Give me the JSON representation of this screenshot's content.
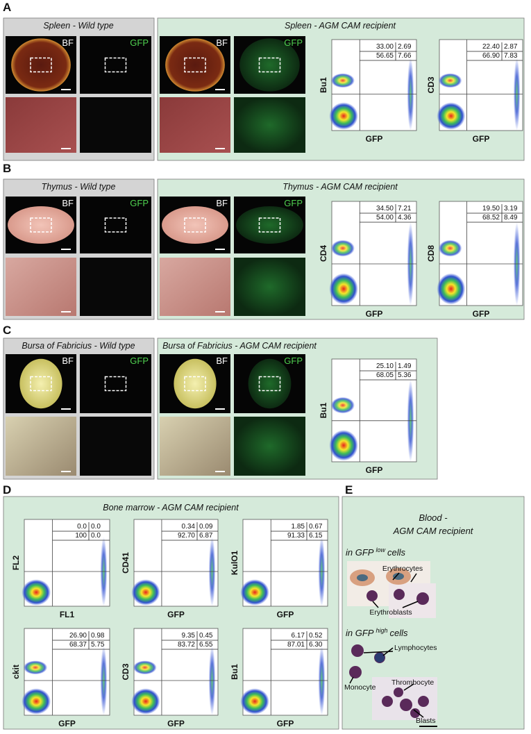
{
  "panels": [
    {
      "label": "A",
      "groups": [
        {
          "title": "Spleen - Wild type",
          "image_labels": [
            "BF",
            "GFP"
          ]
        },
        {
          "title": "Spleen - AGM CAM recipient",
          "image_labels": [
            "BF",
            "GFP"
          ],
          "plots": [
            {
              "y_label": "Bu1",
              "x_label": "GFP",
              "quadrants": [
                [
                  "33.00",
                  "2.69"
                ],
                [
                  "56.65",
                  "7.66"
                ]
              ]
            },
            {
              "y_label": "CD3",
              "x_label": "GFP",
              "quadrants": [
                [
                  "22.40",
                  "2.87"
                ],
                [
                  "66.90",
                  "7.83"
                ]
              ]
            }
          ]
        }
      ]
    },
    {
      "label": "B",
      "groups": [
        {
          "title": "Thymus - Wild type",
          "image_labels": [
            "BF",
            "GFP"
          ]
        },
        {
          "title": "Thymus - AGM CAM recipient",
          "image_labels": [
            "BF",
            "GFP"
          ],
          "plots": [
            {
              "y_label": "CD4",
              "x_label": "GFP",
              "quadrants": [
                [
                  "34.50",
                  "7.21"
                ],
                [
                  "54.00",
                  "4.36"
                ]
              ]
            },
            {
              "y_label": "CD8",
              "x_label": "GFP",
              "quadrants": [
                [
                  "19.50",
                  "3.19"
                ],
                [
                  "68.52",
                  "8.49"
                ]
              ]
            }
          ]
        }
      ]
    },
    {
      "label": "C",
      "groups": [
        {
          "title": "Bursa of Fabricius - Wild type",
          "image_labels": [
            "BF",
            "GFP"
          ]
        },
        {
          "title": "Bursa of Fabricius - AGM CAM recipient",
          "image_labels": [
            "BF",
            "GFP"
          ],
          "plots": [
            {
              "y_label": "Bu1",
              "x_label": "GFP",
              "quadrants": [
                [
                  "25.10",
                  "1.49"
                ],
                [
                  "68.05",
                  "5.36"
                ]
              ]
            }
          ]
        }
      ]
    }
  ],
  "bone_marrow": {
    "label": "D",
    "title": "Bone marrow - AGM CAM recipient",
    "plots": [
      {
        "y_label": "FL2",
        "x_label": "FL1",
        "quadrants": [
          [
            "0.0",
            "0.0"
          ],
          [
            "100",
            "0.0"
          ]
        ]
      },
      {
        "y_label": "CD41",
        "x_label": "GFP",
        "quadrants": [
          [
            "0.34",
            "0.09"
          ],
          [
            "92.70",
            "6.87"
          ]
        ]
      },
      {
        "y_label": "KulO1",
        "x_label": "GFP",
        "quadrants": [
          [
            "1.85",
            "0.67"
          ],
          [
            "91.33",
            "6.15"
          ]
        ]
      },
      {
        "y_label": "ckit",
        "x_label": "GFP",
        "quadrants": [
          [
            "26.90",
            "0.98"
          ],
          [
            "68.37",
            "5.75"
          ]
        ]
      },
      {
        "y_label": "CD3",
        "x_label": "GFP",
        "quadrants": [
          [
            "9.35",
            "0.45"
          ],
          [
            "83.72",
            "6.55"
          ]
        ]
      },
      {
        "y_label": "Bu1",
        "x_label": "GFP",
        "quadrants": [
          [
            "6.17",
            "0.52"
          ],
          [
            "87.01",
            "6.30"
          ]
        ]
      }
    ]
  },
  "blood": {
    "label": "E",
    "title_lines": [
      "Blood -",
      "AGM CAM recipient"
    ],
    "low_heading": {
      "prefix": "in GFP",
      "superscript": "low",
      "suffix": "cells"
    },
    "high_heading": {
      "prefix": "in GFP",
      "superscript": "high",
      "suffix": "cells"
    },
    "cell_labels": [
      "Erythrocytes",
      "Erythroblasts",
      "Lymphocytes",
      "Monocyte",
      "Thrombocyte",
      "Blasts"
    ]
  }
}
